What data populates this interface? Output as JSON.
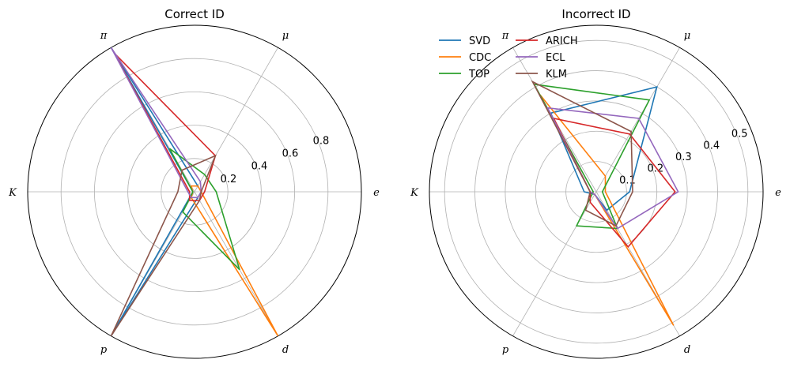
{
  "chart_data": [
    {
      "type": "radar",
      "title": "Correct ID",
      "axes": [
        "e",
        "μ",
        "π",
        "K",
        "p",
        "d"
      ],
      "axis_labels": [
        "e",
        "μ",
        "π",
        "K",
        "p",
        "d"
      ],
      "radial_ticks": [
        "0.2",
        "0.4",
        "0.6",
        "0.8"
      ],
      "rlim": [
        0,
        1.0
      ],
      "grid": true,
      "series": [
        {
          "name": "SVD",
          "color": "#1f77b4",
          "values": [
            0.04,
            0.04,
            1.0,
            0.01,
            1.0,
            0.04
          ]
        },
        {
          "name": "CDC",
          "color": "#ff7f0e",
          "values": [
            0.04,
            0.04,
            0.04,
            0.01,
            0.04,
            1.0
          ]
        },
        {
          "name": "TOP",
          "color": "#2ca02c",
          "values": [
            0.13,
            0.12,
            0.3,
            0.01,
            0.14,
            0.54
          ]
        },
        {
          "name": "ARICH",
          "color": "#d62728",
          "values": [
            0.06,
            0.25,
            0.96,
            0.03,
            0.06,
            0.06
          ]
        },
        {
          "name": "ECL",
          "color": "#9467bd",
          "values": [
            0.04,
            0.07,
            1.0,
            0.04,
            0.04,
            0.04
          ]
        },
        {
          "name": "KLM",
          "color": "#8c564b",
          "values": [
            0.04,
            0.25,
            0.15,
            0.1,
            1.0,
            0.06
          ]
        }
      ]
    },
    {
      "type": "radar",
      "title": "Incorrect ID",
      "axes": [
        "e",
        "μ",
        "π",
        "K",
        "p",
        "d"
      ],
      "axis_labels": [
        "e",
        "μ",
        "π",
        "K",
        "p",
        "d"
      ],
      "radial_ticks": [
        "0.1",
        "0.2",
        "0.3",
        "0.4",
        "0.5"
      ],
      "rlim": [
        0,
        0.55
      ],
      "grid": true,
      "legend_position": "top-left",
      "series": [
        {
          "name": "SVD",
          "color": "#1f77b4",
          "values": [
            0.11,
            0.4,
            0.3,
            0.04,
            0.01,
            0.07
          ]
        },
        {
          "name": "CDC",
          "color": "#ff7f0e",
          "values": [
            0.03,
            0.06,
            0.37,
            0.02,
            0.01,
            0.51
          ]
        },
        {
          "name": "TOP",
          "color": "#2ca02c",
          "values": [
            0.02,
            0.35,
            0.41,
            0.01,
            0.13,
            0.14
          ]
        },
        {
          "name": "ARICH",
          "color": "#d62728",
          "values": [
            0.26,
            0.22,
            0.28,
            0.02,
            0.04,
            0.21
          ]
        },
        {
          "name": "ECL",
          "color": "#9467bd",
          "values": [
            0.27,
            0.28,
            0.32,
            0.02,
            0.01,
            0.14
          ]
        },
        {
          "name": "KLM",
          "color": "#8c564b",
          "values": [
            0.12,
            0.23,
            0.42,
            0.02,
            0.07,
            0.13
          ]
        }
      ]
    }
  ]
}
